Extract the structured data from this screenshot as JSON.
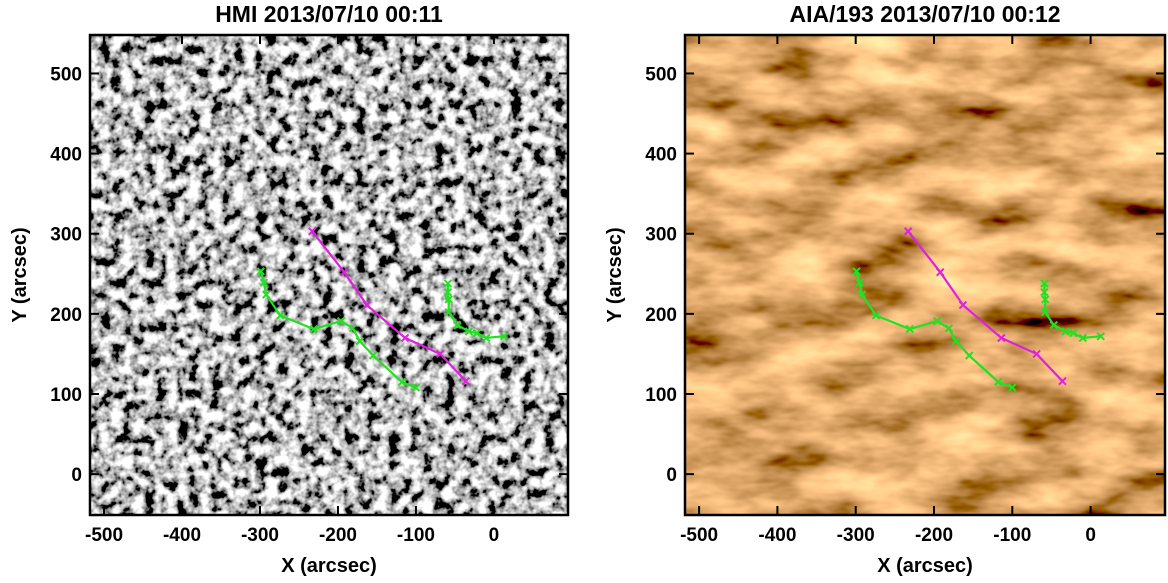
{
  "chart_data": [
    {
      "type": "line",
      "title": "HMI 2013/07/10 00:11",
      "x_label": "X (arcsec)",
      "y_label": "Y (arcsec)",
      "background": "magnetogram",
      "xlim": [
        -518,
        95
      ],
      "ylim": [
        -51,
        548
      ],
      "xticks": [
        -500,
        -400,
        -300,
        -200,
        -100,
        0
      ],
      "yticks": [
        0,
        100,
        200,
        300,
        400,
        500
      ],
      "series": [
        {
          "color": "#e020e0",
          "marker": "x",
          "x": [
            -233,
            -192,
            -163,
            -114,
            -69,
            -36
          ],
          "values": [
            303,
            252,
            211,
            170,
            150,
            116
          ]
        },
        {
          "color": "#22e022",
          "marker": "x",
          "x": [
            -299,
            -295,
            -292,
            -274,
            -231,
            -196,
            -181,
            -172,
            -155,
            -118,
            -100
          ],
          "values": [
            253,
            239,
            224,
            198,
            181,
            191,
            182,
            166,
            148,
            115,
            108
          ]
        },
        {
          "color": "#22e022",
          "marker": "x",
          "x": [
            -59,
            -59,
            -58,
            -58,
            -47,
            -32,
            -22,
            -10,
            13
          ],
          "values": [
            238,
            227,
            218,
            202,
            186,
            178,
            176,
            170,
            172
          ]
        }
      ]
    },
    {
      "type": "line",
      "title": "AIA/193 2013/07/10 00:12",
      "x_label": "X (arcsec)",
      "y_label": "Y (arcsec)",
      "background": "euv",
      "xlim": [
        -518,
        95
      ],
      "ylim": [
        -51,
        548
      ],
      "xticks": [
        -500,
        -400,
        -300,
        -200,
        -100,
        0
      ],
      "yticks": [
        0,
        100,
        200,
        300,
        400,
        500
      ],
      "series": [
        {
          "color": "#e020e0",
          "marker": "x",
          "x": [
            -233,
            -192,
            -163,
            -114,
            -69,
            -36
          ],
          "values": [
            303,
            252,
            211,
            170,
            150,
            116
          ]
        },
        {
          "color": "#22e022",
          "marker": "x",
          "x": [
            -299,
            -295,
            -292,
            -274,
            -231,
            -196,
            -181,
            -172,
            -155,
            -118,
            -100
          ],
          "values": [
            253,
            239,
            224,
            198,
            181,
            191,
            182,
            166,
            148,
            115,
            108
          ]
        },
        {
          "color": "#22e022",
          "marker": "x",
          "x": [
            -59,
            -59,
            -58,
            -58,
            -47,
            -32,
            -22,
            -10,
            13
          ],
          "values": [
            238,
            227,
            218,
            202,
            186,
            178,
            176,
            170,
            172
          ]
        }
      ]
    }
  ]
}
